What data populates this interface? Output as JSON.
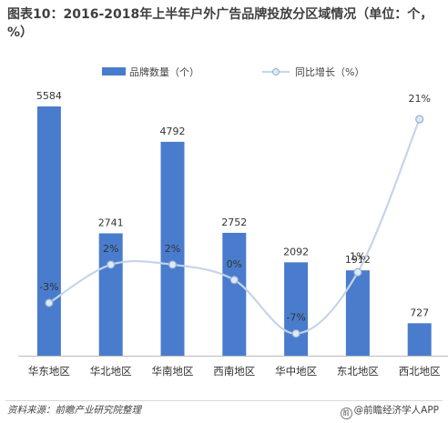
{
  "title": "图表10：2016-2018年上半年户外广告品牌投放分区域情况（单位：个，%）",
  "source": "资料来源：前瞻产业研究院整理",
  "brand": "@前瞻经济学人APP",
  "colors": {
    "bar": "#4a7ccd",
    "line": "#c4d5ea",
    "marker": "#dfe9f5",
    "marker_stroke": "#95b0d3"
  },
  "chart_data": {
    "type": "bar",
    "title": "图表10：2016-2018年上半年户外广告品牌投放分区域情况（单位：个，%）",
    "categories": [
      "华东地区",
      "华北地区",
      "华南地区",
      "西南地区",
      "华中地区",
      "东北地区",
      "西北地区"
    ],
    "series": [
      {
        "name": "品牌数量（个）",
        "type": "bar",
        "values": [
          5584,
          2741,
          4792,
          2752,
          2092,
          1912,
          727
        ],
        "labels": [
          "5584",
          "2741",
          "4792",
          "2752",
          "2092",
          "1912",
          "727"
        ]
      },
      {
        "name": "同比增长（%）",
        "type": "line",
        "values": [
          -3,
          2,
          2,
          0,
          -7,
          1,
          21
        ],
        "labels": [
          "-3%",
          "2%",
          "2%",
          "0%",
          "-7%",
          "1%",
          "21%"
        ]
      }
    ],
    "legend_position": "top",
    "grid": false
  }
}
